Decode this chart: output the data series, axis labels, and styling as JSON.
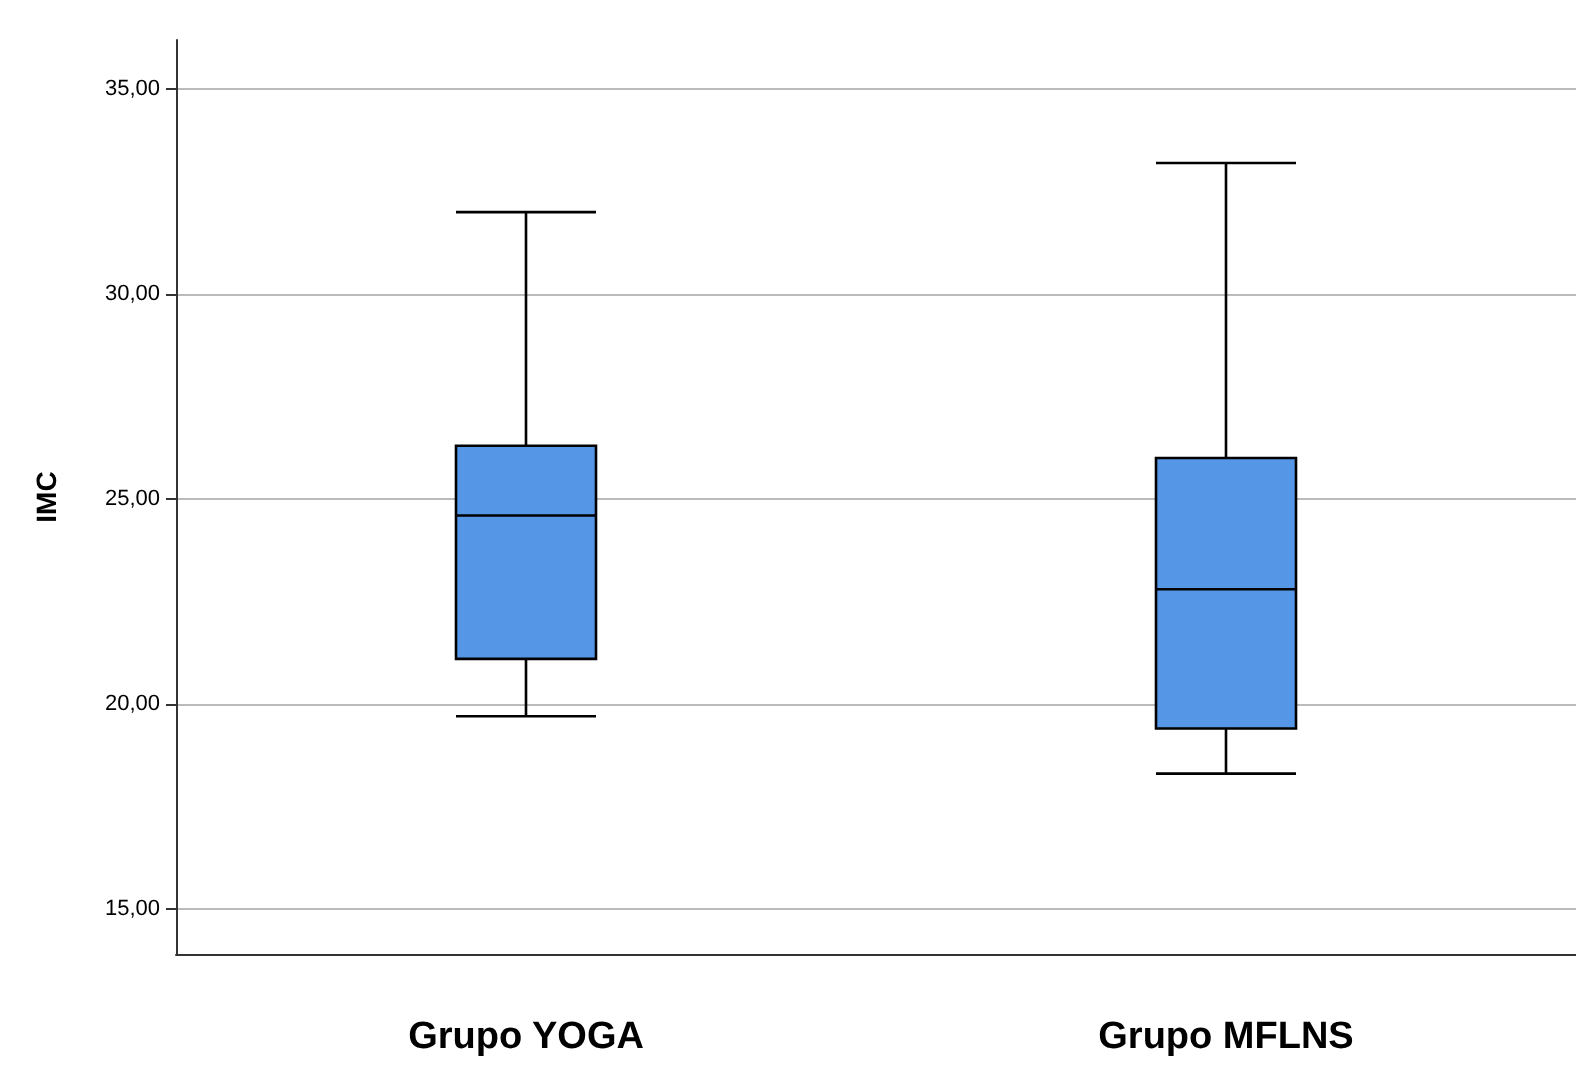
{
  "chart_data": {
    "type": "box",
    "ylabel": "IMC",
    "categories": [
      "Grupo YOGA",
      "Grupo MFLNS"
    ],
    "color": "#5596e6",
    "boxes": [
      {
        "low": 19.7,
        "q1": 21.1,
        "median": 24.6,
        "q3": 26.3,
        "high": 32.0
      },
      {
        "low": 18.3,
        "q1": 19.4,
        "median": 22.8,
        "q3": 26.0,
        "high": 33.2
      }
    ],
    "ylim": [
      13.9,
      36.2
    ],
    "yticks": [
      {
        "value": 15,
        "label": "15,00"
      },
      {
        "value": 20,
        "label": "20,00"
      },
      {
        "value": 25,
        "label": "25,00"
      },
      {
        "value": 30,
        "label": "30,00"
      },
      {
        "value": 35,
        "label": "35,00"
      }
    ],
    "grid": "y"
  }
}
